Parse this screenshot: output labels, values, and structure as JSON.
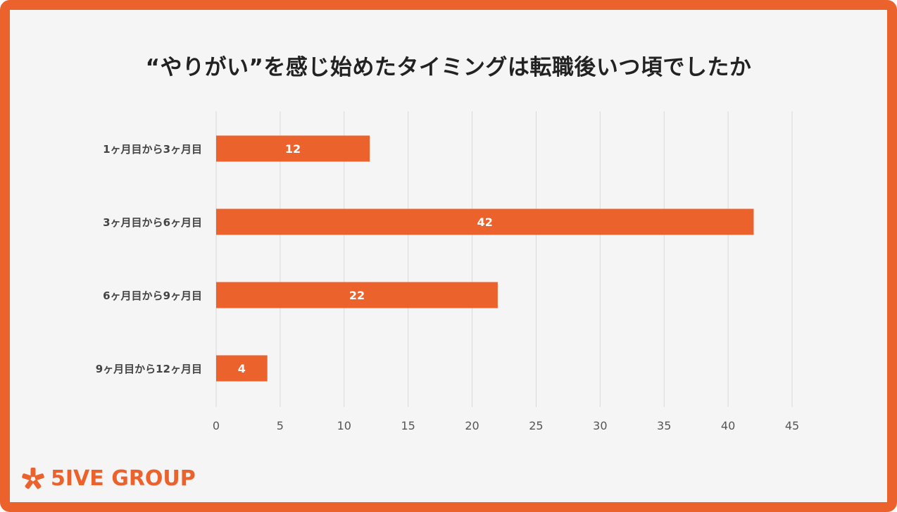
{
  "title": "“やりがい”を感じ始めたタイミングは転職後いつ頃でしたか",
  "brand": {
    "name": "5IVE GROUP",
    "color": "#ec622c"
  },
  "chart_data": {
    "type": "bar",
    "orientation": "horizontal",
    "title": "“やりがい”を感じ始めたタイミングは転職後いつ頃でしたか",
    "categories": [
      "1ヶ月目から3ヶ月目",
      "3ヶ月目から6ヶ月目",
      "6ヶ月目から9ヶ月目",
      "9ヶ月目から12ヶ月目"
    ],
    "values": [
      12,
      42,
      22,
      4
    ],
    "xlim": [
      0,
      45
    ],
    "xticks": [
      "0",
      "5",
      "10",
      "15",
      "20",
      "25",
      "30",
      "35",
      "40",
      "45"
    ],
    "xlabel": "",
    "ylabel": "",
    "grid": true,
    "data_labels": true,
    "bar_color": "#ec622c"
  }
}
